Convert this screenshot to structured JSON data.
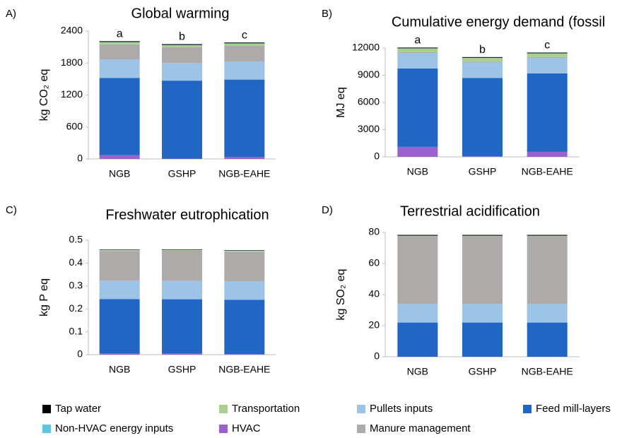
{
  "chart_data": [
    {
      "type": "bar",
      "stacked": true,
      "panel_label": "A)",
      "title": "Global warming",
      "y_label": "kg CO₂ eq",
      "categories": [
        "NGB",
        "GSHP",
        "NGB-EAHE"
      ],
      "bar_annotations": [
        "a",
        "b",
        "c"
      ],
      "ylim": [
        0,
        2400
      ],
      "yticks": [
        0,
        600,
        1200,
        1800,
        2400
      ],
      "series": [
        {
          "name": "HVAC",
          "color": "#9b62cf",
          "values": [
            70,
            5,
            40
          ]
        },
        {
          "name": "Feed mill-layers",
          "color": "#2266c4",
          "values": [
            1450,
            1465,
            1450
          ]
        },
        {
          "name": "Pullets inputs",
          "color": "#9dc3e6",
          "values": [
            350,
            330,
            340
          ]
        },
        {
          "name": "Manure management",
          "color": "#aeaaaa",
          "values": [
            280,
            300,
            300
          ]
        },
        {
          "name": "Transportation",
          "color": "#a9d18e",
          "values": [
            40,
            35,
            35
          ]
        },
        {
          "name": "Non-HVAC energy inputs",
          "color": "#5bc8e0",
          "values": [
            5,
            5,
            5
          ]
        },
        {
          "name": "Tap water",
          "color": "#000000",
          "values": [
            15,
            15,
            15
          ]
        }
      ]
    },
    {
      "type": "bar",
      "stacked": true,
      "panel_label": "B)",
      "title": "Cumulative energy demand (fossil",
      "y_label": "MJ eq",
      "categories": [
        "NGB",
        "GSHP",
        "NGB-EAHE"
      ],
      "bar_annotations": [
        "a",
        "b",
        "c"
      ],
      "ylim": [
        0,
        12000
      ],
      "yticks": [
        0,
        3000,
        6000,
        9000,
        12000
      ],
      "series": [
        {
          "name": "HVAC",
          "color": "#9b62cf",
          "values": [
            1100,
            50,
            550
          ]
        },
        {
          "name": "Feed mill-layers",
          "color": "#2266c4",
          "values": [
            8650,
            8650,
            8650
          ]
        },
        {
          "name": "Pullets inputs",
          "color": "#9dc3e6",
          "values": [
            1700,
            1700,
            1700
          ]
        },
        {
          "name": "Manure management",
          "color": "#aeaaaa",
          "values": [
            100,
            100,
            100
          ]
        },
        {
          "name": "Transportation",
          "color": "#a9d18e",
          "values": [
            400,
            400,
            400
          ]
        },
        {
          "name": "Non-HVAC energy inputs",
          "color": "#5bc8e0",
          "values": [
            20,
            20,
            20
          ]
        },
        {
          "name": "Tap water",
          "color": "#000000",
          "values": [
            80,
            80,
            80
          ]
        }
      ]
    },
    {
      "type": "bar",
      "stacked": true,
      "panel_label": "C)",
      "title": "Freshwater eutrophication",
      "y_label": "kg P eq",
      "categories": [
        "NGB",
        "GSHP",
        "NGB-EAHE"
      ],
      "ylim": [
        0,
        0.5
      ],
      "yticks": [
        0,
        0.1,
        0.2,
        0.3,
        0.4,
        0.5
      ],
      "series": [
        {
          "name": "HVAC",
          "color": "#9b62cf",
          "values": [
            0.005,
            0.005,
            0.002
          ]
        },
        {
          "name": "Feed mill-layers",
          "color": "#2266c4",
          "values": [
            0.238,
            0.237,
            0.238
          ]
        },
        {
          "name": "Pullets inputs",
          "color": "#9dc3e6",
          "values": [
            0.08,
            0.08,
            0.08
          ]
        },
        {
          "name": "Manure management",
          "color": "#aeaaaa",
          "values": [
            0.13,
            0.132,
            0.13
          ]
        },
        {
          "name": "Transportation",
          "color": "#a9d18e",
          "values": [
            0.003,
            0.003,
            0.003
          ]
        },
        {
          "name": "Non-HVAC energy inputs",
          "color": "#5bc8e0",
          "values": [
            0.001,
            0.001,
            0.001
          ]
        },
        {
          "name": "Tap water",
          "color": "#000000",
          "values": [
            0.002,
            0.002,
            0.002
          ]
        }
      ]
    },
    {
      "type": "bar",
      "stacked": true,
      "panel_label": "D)",
      "title": "Terrestrial acidification",
      "y_label": "kg SO₂ eq",
      "categories": [
        "NGB",
        "GSHP",
        "NGB-EAHE"
      ],
      "ylim": [
        0,
        80
      ],
      "yticks": [
        0,
        20,
        40,
        60,
        80
      ],
      "series": [
        {
          "name": "HVAC",
          "color": "#9b62cf",
          "values": [
            0,
            0,
            0
          ]
        },
        {
          "name": "Feed mill-layers",
          "color": "#2266c4",
          "values": [
            22,
            22,
            22
          ]
        },
        {
          "name": "Pullets inputs",
          "color": "#9dc3e6",
          "values": [
            12,
            12,
            12
          ]
        },
        {
          "name": "Manure management",
          "color": "#aeaaaa",
          "values": [
            43.5,
            43.5,
            43.5
          ]
        },
        {
          "name": "Transportation",
          "color": "#a9d18e",
          "values": [
            0.3,
            0.3,
            0.3
          ]
        },
        {
          "name": "Non-HVAC energy inputs",
          "color": "#5bc8e0",
          "values": [
            0.1,
            0.1,
            0.1
          ]
        },
        {
          "name": "Tap water",
          "color": "#000000",
          "values": [
            0.5,
            0.5,
            0.5
          ]
        }
      ]
    }
  ]
}
